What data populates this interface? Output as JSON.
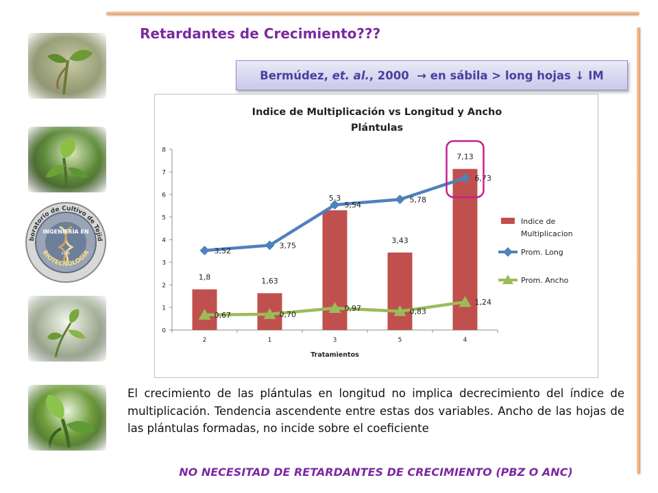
{
  "slide": {
    "title": "Retardantes de Crecimiento???",
    "reference": {
      "prefix": "Bermúdez,",
      "italic": "et. al.",
      "suffix": ", 2000",
      "arrow1": "→",
      "middle": "en sábila > long hojas",
      "arrow2": "↓",
      "end": "IM"
    },
    "body": "El crecimiento de las plántulas en longitud no implica decrecimiento del índice de multiplicación. Tendencia ascendente entre estas dos variables. Ancho de las hojas de las plántulas formadas, no incide sobre el coeficiente",
    "conclusion": "NO NECESITAD DE RETARDANTES DE CRECIMIENTO (PBZ O ANC)",
    "logo": {
      "top_text": "Laboratorio de Cultivo de Tejidos",
      "inner_text": "INGENIERÍA EN",
      "bottom_text": "BIOTECNOLOGÍA",
      "small_text": "ESPE"
    },
    "colors": {
      "title": "#7b2aa0",
      "reference_text": "#4b3ea1",
      "accent_rule": "#e8a06a",
      "highlight_ring": "#c0208f"
    }
  },
  "chart_data": {
    "type": "bar",
    "title": "Indice de Multiplicación  vs Longitud y Ancho Plántulas",
    "title_lines": [
      "Indice de Multiplicación  vs Longitud y Ancho",
      "Plántulas"
    ],
    "xlabel": "Tratamientos",
    "ylabel": "",
    "categories": [
      "2",
      "1",
      "3",
      "5",
      "4"
    ],
    "ylim": [
      0,
      8
    ],
    "yticks": [
      "0",
      "1",
      "2",
      "3",
      "4",
      "5",
      "6",
      "7",
      "8"
    ],
    "grid": false,
    "legend_position": "right",
    "series": [
      {
        "name": "Indice de Multiplicacion",
        "type": "bar",
        "color": "#c0504d",
        "values": [
          1.8,
          1.63,
          5.3,
          3.43,
          7.13
        ],
        "labels": [
          "1,8",
          "1,63",
          "5,3",
          "3,43",
          "7,13"
        ]
      },
      {
        "name": "Prom. Long",
        "type": "line",
        "marker": "diamond",
        "color": "#4f81bd",
        "values": [
          3.52,
          3.75,
          5.54,
          5.78,
          6.73
        ],
        "labels": [
          "3,52",
          "3,75",
          "5,54",
          "5,78",
          "6,73"
        ]
      },
      {
        "name": "Prom. Ancho",
        "type": "line",
        "marker": "triangle",
        "color": "#9bbb59",
        "values": [
          0.67,
          0.7,
          0.97,
          0.83,
          1.24
        ],
        "labels": [
          "0,67",
          "0,70",
          "0,97",
          "0,83",
          "1,24"
        ]
      }
    ],
    "legend_lines": [
      [
        "Indice de",
        "Multiplicacion"
      ],
      [
        "Prom. Long"
      ],
      [
        "Prom. Ancho"
      ]
    ],
    "highlight": "category 4"
  }
}
